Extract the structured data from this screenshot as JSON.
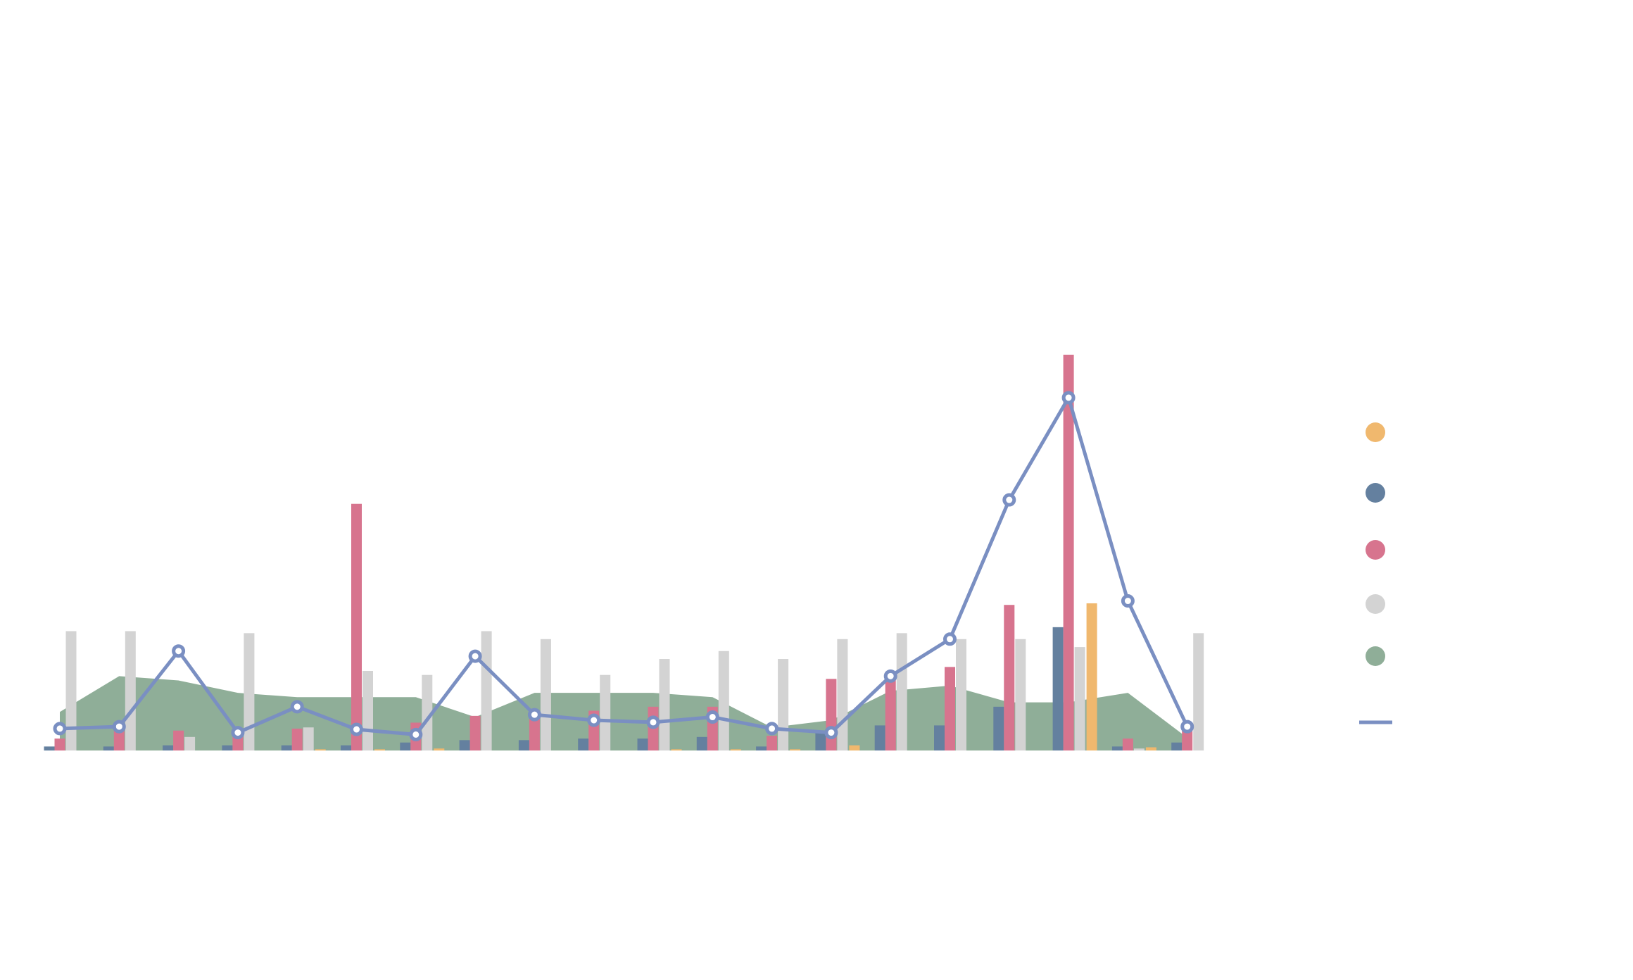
{
  "chart_data": {
    "type": "bar",
    "categories": [
      null,
      null,
      null,
      null,
      null,
      null,
      null,
      null,
      null,
      null,
      null,
      null,
      null,
      null,
      null,
      null,
      null,
      null,
      null,
      null
    ],
    "ylim": [
      0,
      100
    ],
    "series": [
      {
        "type": "bar",
        "color": "#f0b86e",
        "values": [
          0,
          0,
          0,
          0,
          0.3,
          0.3,
          0.5,
          0,
          0,
          0,
          0.3,
          0.3,
          0.3,
          1.3,
          0,
          0,
          0,
          37,
          0.8,
          0
        ]
      },
      {
        "type": "bar",
        "color": "#64809f",
        "values": [
          1,
          1,
          1.3,
          1.3,
          1.3,
          1.3,
          2,
          2.6,
          2.6,
          3,
          3,
          3.4,
          1,
          4.5,
          6.3,
          6.3,
          11,
          31,
          1,
          2
        ]
      },
      {
        "type": "bar",
        "color": "#d7748e",
        "values": [
          3,
          6,
          5,
          4.5,
          5.5,
          62,
          7,
          8.7,
          9.7,
          10,
          11,
          11,
          3.7,
          18,
          19,
          21,
          36.6,
          99.5,
          3,
          5
        ]
      },
      {
        "type": "bar",
        "color": "#d3d3d3",
        "values": [
          30,
          30,
          3.4,
          29.5,
          5.8,
          20,
          19,
          30,
          28,
          19,
          23,
          25,
          23,
          28,
          29.5,
          28,
          28,
          26,
          0.5,
          29.5
        ]
      },
      {
        "type": "area",
        "color": "#8fae98",
        "values": [
          9.7,
          18.7,
          17.6,
          14.5,
          13.4,
          13.4,
          13.4,
          8.4,
          14.5,
          14.5,
          14.5,
          13.4,
          5.8,
          7.6,
          15,
          16.3,
          12.1,
          12.1,
          14.5,
          3.2
        ]
      },
      {
        "type": "line",
        "color": "#7a8fc2",
        "values": [
          5.5,
          6,
          25,
          4.5,
          11,
          5.3,
          4,
          23.7,
          9,
          7.6,
          7.1,
          8.4,
          5.5,
          4.5,
          18.7,
          28,
          63,
          88.7,
          37.6,
          6
        ]
      }
    ]
  }
}
